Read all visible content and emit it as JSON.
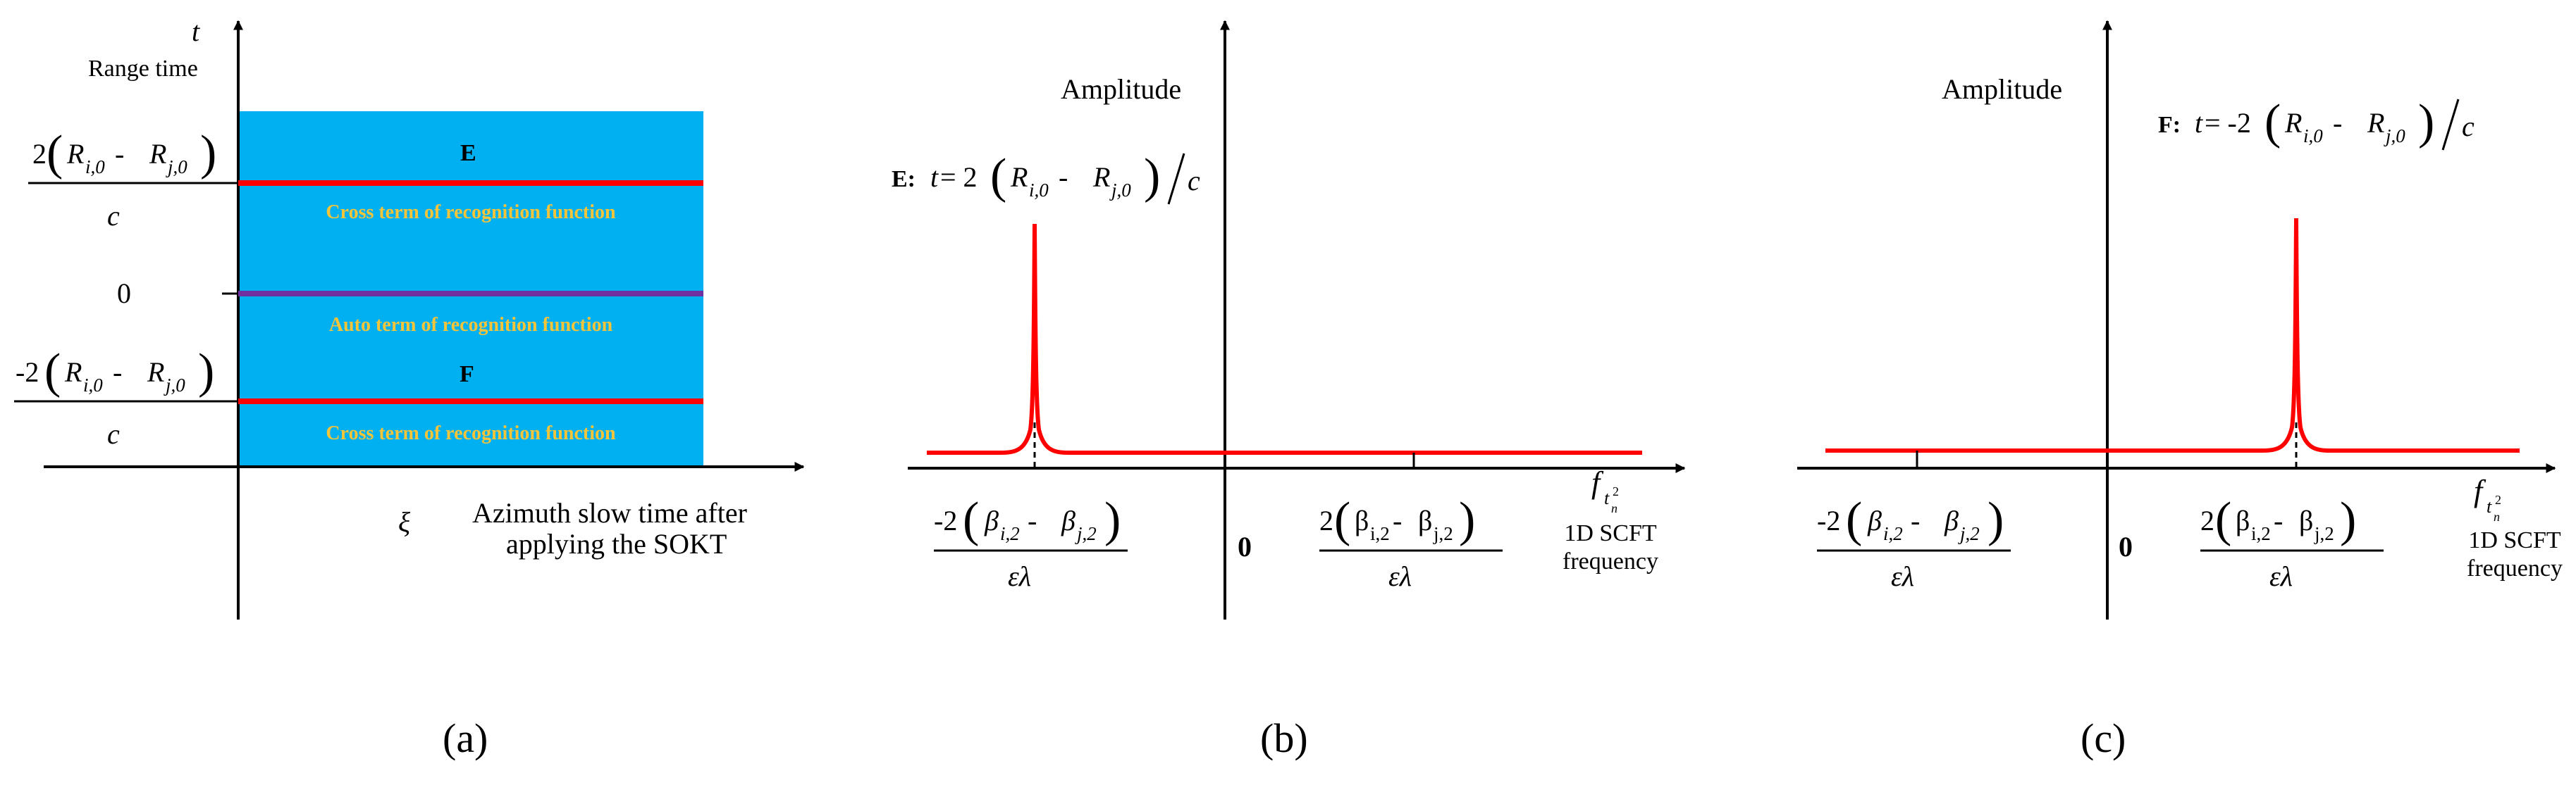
{
  "colors": {
    "band": "#00b0f0",
    "cross_line": "#ff0000",
    "auto_line": "#7030a0",
    "band_text": "#f4c43a",
    "curve": "#ff0000"
  },
  "panel_a": {
    "y_axis_symbol": "t",
    "y_axis_label": "Range time",
    "x_axis_symbol": "ξ",
    "x_axis_label_line1": "Azimuth slow time after",
    "x_axis_label_line2": "applying the SOKT",
    "tick_top": {
      "num_prefix": "2",
      "R1": "R",
      "R1_sub": "i,0",
      "minus": " - ",
      "R2": "R",
      "R2_sub": "j,0",
      "den": "c"
    },
    "tick_zero": "0",
    "tick_bottom": {
      "num_prefix": "-2",
      "R1": "R",
      "R1_sub": "i,0",
      "minus": " - ",
      "R2": "R",
      "R2_sub": "j,0",
      "den": "c"
    },
    "marker_E": "E",
    "marker_F": "F",
    "cross_term_label": "Cross term of recognition function",
    "auto_term_label": "Auto term of recognition function",
    "caption": "(a)"
  },
  "panel_b": {
    "y_axis_label": "Amplitude",
    "annotation": {
      "label": "E:",
      "t": "t",
      "eq": " = 2",
      "R1": "R",
      "R1_sub": "i,0",
      "minus": " - ",
      "R2": "R",
      "R2_sub": "j,0",
      "slash_c": "c"
    },
    "x_axis_symbol": "f",
    "x_axis_symbol_sub": "t",
    "x_axis_symbol_subsub": "n",
    "x_axis_symbol_sup": "2",
    "x_axis_label_line1": "1D SCFT",
    "x_axis_label_line2": "frequency",
    "tick_left": {
      "num_prefix": "-2",
      "b1": "β",
      "b1_sub": "i,2",
      "minus": " - ",
      "b2": "β",
      "b2_sub": "j,2",
      "den": "ελ"
    },
    "tick_zero": "0",
    "tick_right": {
      "num_prefix": "2",
      "b1": "β",
      "b1_sub": "i,2",
      "minus": " -",
      "b2": "β",
      "b2_sub": "j,2",
      "den": "ελ"
    },
    "caption": "(b)"
  },
  "panel_c": {
    "y_axis_label": "Amplitude",
    "annotation": {
      "label": "F:",
      "t": "t",
      "eq": " = -2",
      "R1": "R",
      "R1_sub": "i,0",
      "minus": " - ",
      "R2": "R",
      "R2_sub": "j,0",
      "slash_c": "c"
    },
    "x_axis_symbol": "f",
    "x_axis_symbol_sub": "t",
    "x_axis_symbol_subsub": "n",
    "x_axis_symbol_sup": "2",
    "x_axis_label_line1": "1D SCFT",
    "x_axis_label_line2": "frequency",
    "tick_left": {
      "num_prefix": "-2",
      "b1": "β",
      "b1_sub": "i,2",
      "minus": " - ",
      "b2": "β",
      "b2_sub": "j,2",
      "den": "ελ"
    },
    "tick_zero": "0",
    "tick_right": {
      "num_prefix": "2",
      "b1": "β",
      "b1_sub": "i,2",
      "minus": " -",
      "b2": "β",
      "b2_sub": "j,2",
      "den": "ελ"
    },
    "caption": "(c)"
  }
}
